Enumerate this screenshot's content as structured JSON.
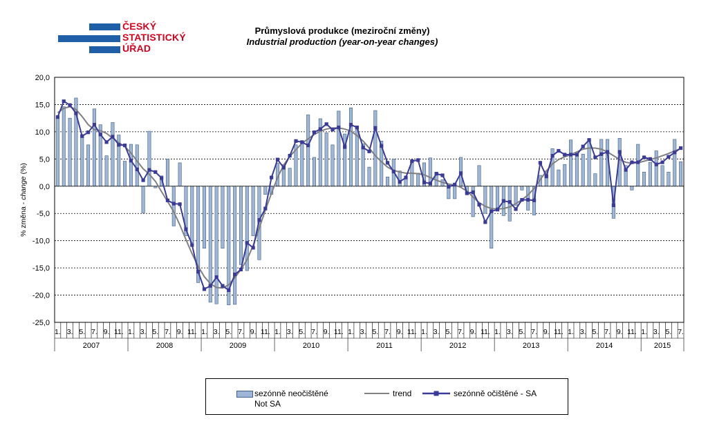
{
  "header": {
    "logo_lines": [
      "ČESKÝ",
      "STATISTICKÝ",
      "ÚŘAD"
    ],
    "title": "Průmyslová produkce (meziroční změny)",
    "subtitle": "Industrial production (year-on-year changes)"
  },
  "colors": {
    "bars": "#9fb6d6",
    "bar_border": "#3f5f86",
    "trend": "#808080",
    "sa": "#3a3a98",
    "logo_blue": "#1f5fa8",
    "logo_red": "#d6001c"
  },
  "legend": {
    "position": "bottom",
    "items": [
      {
        "key": "bars",
        "label_lines": [
          "sezónně neočištěné",
          "Not SA"
        ]
      },
      {
        "key": "trend",
        "label_lines": [
          "trend"
        ]
      },
      {
        "key": "sa",
        "label_lines": [
          "sezónně očištěné - SA"
        ]
      }
    ]
  },
  "chart_data": {
    "type": "bar",
    "ylabel": "% změna - change (%)",
    "ylabel_plain": "% změna - ",
    "ylabel_italic": "change",
    "ylabel_tail": " (%)",
    "ylim": [
      -25,
      20
    ],
    "yticks": [
      20,
      15,
      10,
      5,
      0,
      -5,
      -10,
      -15,
      -20,
      -25
    ],
    "ytick_labels": [
      "20,0",
      "15,0",
      "10,0",
      "5,0",
      "0,0",
      "-5,0",
      "-10,0",
      "-15,0",
      "-20,0",
      "-25,0"
    ],
    "grid": "horizontal dashed",
    "x_month_labels": [
      "1.",
      "3.",
      "5.",
      "7.",
      "9.",
      "11."
    ],
    "years": [
      "2007",
      "2008",
      "2009",
      "2010",
      "2011",
      "2012",
      "2013",
      "2014",
      "2015"
    ],
    "series": [
      {
        "name": "sezónně neočištěné Not SA",
        "type": "bar",
        "values": [
          12.6,
          14.6,
          12.5,
          16.2,
          9.4,
          7.6,
          14.2,
          11.3,
          5.6,
          11.7,
          9.4,
          4.6,
          7.7,
          7.6,
          -4.9,
          10.1,
          -0.3,
          1.9,
          5.0,
          -7.3,
          4.3,
          -9.1,
          -10.4,
          -17.7,
          -11.4,
          -21.3,
          -21.6,
          -11.4,
          -21.8,
          -21.7,
          -14.4,
          -15.5,
          -9.1,
          -13.5,
          -1.5,
          -1.5,
          4.2,
          4.0,
          3.3,
          7.6,
          8.2,
          13.1,
          5.3,
          12.4,
          9.8,
          7.6,
          13.8,
          9.6,
          14.4,
          11.0,
          7.8,
          3.5,
          13.9,
          8.3,
          1.7,
          5.0,
          2.8,
          1.8,
          4.4,
          2.4,
          4.3,
          5.2,
          2.6,
          1.2,
          -2.3,
          -2.3,
          5.3,
          -1.4,
          -5.6,
          3.8,
          -5.0,
          -11.4,
          -3.9,
          -5.4,
          -6.4,
          -3.5,
          -0.7,
          -4.4,
          -5.3,
          2.0,
          2.8,
          6.9,
          3.0,
          4.0,
          8.5,
          5.5,
          5.9,
          8.6,
          2.3,
          8.6,
          8.6,
          -5.9,
          8.8,
          3.8,
          -0.7,
          7.7,
          2.6,
          4.4,
          6.5,
          3.8,
          2.6,
          8.6,
          4.5
        ]
      },
      {
        "name": "trend",
        "type": "line",
        "values": [
          13.5,
          14.3,
          14.6,
          14.1,
          12.8,
          11.3,
          10.4,
          10.2,
          9.7,
          8.8,
          8.0,
          7.3,
          6.1,
          4.6,
          3.2,
          2.2,
          0.9,
          -1.0,
          -2.8,
          -4.7,
          -7.1,
          -9.8,
          -12.4,
          -14.7,
          -16.6,
          -17.9,
          -18.6,
          -18.7,
          -18.1,
          -16.8,
          -15.3,
          -13.5,
          -10.9,
          -7.7,
          -4.4,
          -1.3,
          1.6,
          3.9,
          5.5,
          6.7,
          7.9,
          8.7,
          9.5,
          10.1,
          10.5,
          10.7,
          10.7,
          10.5,
          10.1,
          9.3,
          8.3,
          7.0,
          5.6,
          4.5,
          3.5,
          2.9,
          2.6,
          2.4,
          2.4,
          2.3,
          2.1,
          1.6,
          1.1,
          0.7,
          0.4,
          0.2,
          -0.2,
          -0.9,
          -2.0,
          -3.0,
          -3.7,
          -4.1,
          -4.2,
          -4.1,
          -3.8,
          -3.2,
          -2.5,
          -1.6,
          -0.4,
          1.2,
          2.8,
          4.1,
          4.9,
          5.4,
          5.8,
          6.3,
          6.8,
          7.0,
          7.0,
          6.8,
          6.3,
          5.6,
          4.9,
          4.4,
          4.2,
          4.3,
          4.6,
          4.9,
          5.2,
          5.6,
          6.0,
          6.5,
          6.9
        ]
      },
      {
        "name": "sezónně očištěné - SA",
        "type": "line",
        "values": [
          12.7,
          15.6,
          14.9,
          13.4,
          9.2,
          9.9,
          11.3,
          9.5,
          8.1,
          9.1,
          7.6,
          7.5,
          4.7,
          3.1,
          1.1,
          3.0,
          2.6,
          1.5,
          -2.6,
          -3.2,
          -3.3,
          -7.9,
          -10.8,
          -15.7,
          -18.9,
          -18.3,
          -16.7,
          -18.3,
          -19.1,
          -16.2,
          -15.3,
          -10.4,
          -11.3,
          -6.2,
          -4.1,
          1.6,
          4.9,
          3.4,
          5.6,
          8.3,
          8.1,
          7.5,
          9.9,
          10.5,
          11.4,
          10.4,
          10.8,
          7.2,
          11.3,
          10.8,
          7.1,
          6.4,
          10.7,
          7.4,
          4.3,
          2.7,
          0.8,
          1.6,
          4.6,
          4.8,
          0.7,
          0.5,
          2.3,
          2.0,
          -0.1,
          0.3,
          2.4,
          -1.3,
          -1.1,
          -3.4,
          -6.6,
          -4.6,
          -4.3,
          -2.7,
          -2.9,
          -4.2,
          -2.5,
          -2.5,
          -2.6,
          4.3,
          1.8,
          5.6,
          6.5,
          5.8,
          5.8,
          5.8,
          7.3,
          8.5,
          5.3,
          5.9,
          6.3,
          -3.5,
          6.3,
          3.0,
          4.4,
          4.4,
          5.3,
          5.0,
          4.0,
          4.4,
          5.4,
          6.2,
          7.0
        ]
      }
    ]
  }
}
